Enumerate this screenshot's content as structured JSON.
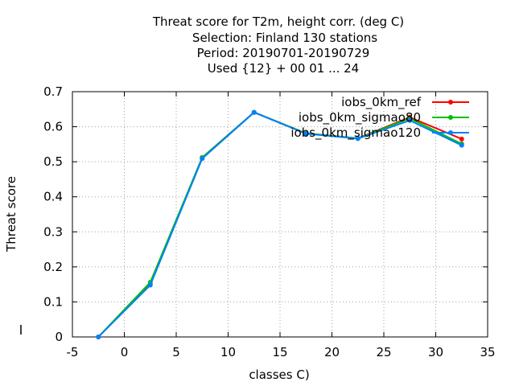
{
  "title_lines": [
    "Threat score  for T2m, height corr. (deg C)",
    "Selection: Finland    130 stations",
    "Period: 20190701-20190729",
    "Used {12} + 00 01 ... 24"
  ],
  "chart_data": {
    "type": "line",
    "title": "Threat score  for T2m, height corr. (deg C)\nSelection: Finland    130 stations\nPeriod: 20190701-20190729\nUsed {12} + 00 01 ... 24",
    "xlabel": "classes C)",
    "ylabel": "Threat score",
    "xlim": [
      -5,
      35
    ],
    "ylim": [
      0,
      0.7
    ],
    "x_ticks": [
      "-5",
      "0",
      "5",
      "10",
      "15",
      "20",
      "25",
      "30",
      "35"
    ],
    "y_ticks": [
      "0",
      "0.1",
      "0.2",
      "0.3",
      "0.4",
      "0.5",
      "0.6",
      "0.7"
    ],
    "grid": true,
    "legend_position": "top-right",
    "x": [
      -2.5,
      2.5,
      7.5,
      12.5,
      17.5,
      22.5,
      27.5,
      32.5
    ],
    "series": [
      {
        "name": "iobs_0km_ref",
        "color": "#ff0000",
        "values": [
          0.0,
          0.152,
          0.512,
          0.641,
          0.581,
          0.567,
          0.627,
          0.565
        ]
      },
      {
        "name": "iobs_0km_sigmao80",
        "color": "#00c000",
        "values": [
          0.0,
          0.156,
          0.512,
          0.641,
          0.581,
          0.567,
          0.624,
          0.551
        ]
      },
      {
        "name": "iobs_0km_sigmao120",
        "color": "#0080ff",
        "values": [
          0.0,
          0.148,
          0.509,
          0.641,
          0.58,
          0.566,
          0.618,
          0.547
        ]
      }
    ]
  }
}
